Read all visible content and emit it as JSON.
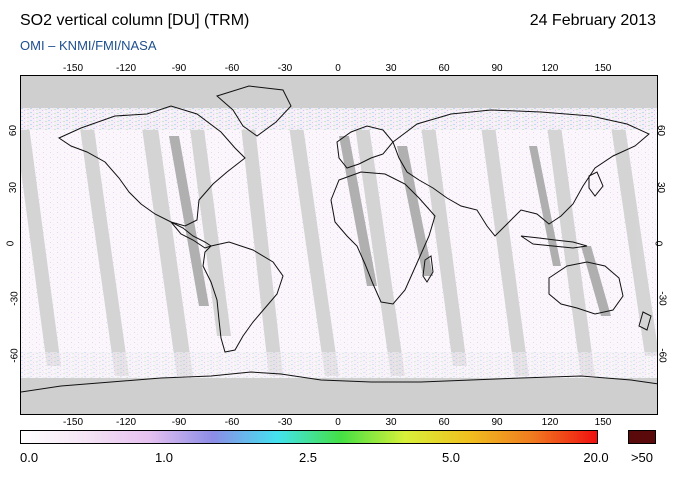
{
  "header": {
    "title": "SO2 vertical column [DU] (TRM)",
    "date": "24 February 2013",
    "credit": "OMI  –  KNMI/FMI/NASA"
  },
  "map": {
    "lon_ticks": [
      "-150",
      "-120",
      "-90",
      "-60",
      "-30",
      "0",
      "30",
      "60",
      "90",
      "120",
      "150"
    ],
    "lat_ticks": [
      "60",
      "30",
      "0",
      "-30",
      "-60"
    ],
    "colors": {
      "frame": "#000000",
      "coast": "#111111",
      "swath_gap": "#d2d2d2",
      "swath_dark": "#a9a9a9",
      "polar_cap": "#cfcfcf",
      "background_tint": "#fbf4fb"
    }
  },
  "colorbar": {
    "labels": [
      "0.0",
      "1.0",
      "2.5",
      "5.0",
      "20.0",
      ">50"
    ],
    "stops": [
      "#ffffff",
      "#f4e4f4",
      "#e6c1f0",
      "#8c8ce6",
      "#44e2f0",
      "#44e044",
      "#d8f03a",
      "#f0c020",
      "#f07a20",
      "#f01010"
    ],
    "over_color": "#5a0a0a"
  }
}
